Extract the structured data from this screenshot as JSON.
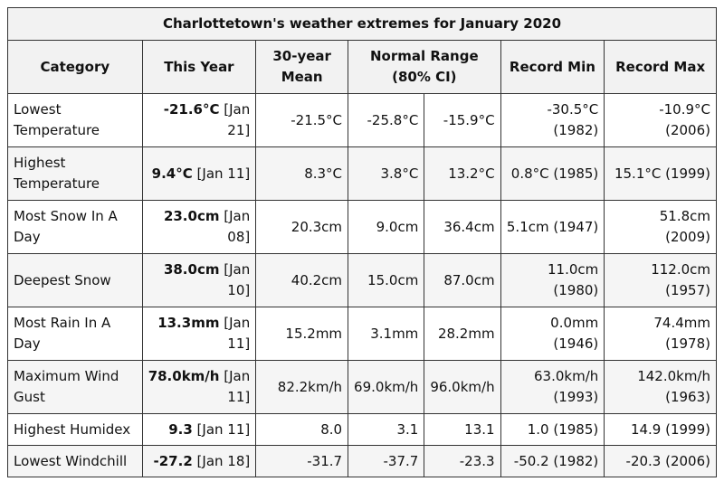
{
  "table": {
    "title": "Charlottetown's weather extremes for January 2020",
    "headers": {
      "category": "Category",
      "this_year": "This Year",
      "mean_line1": "30-year",
      "mean_line2": "Mean",
      "range_line1": "Normal Range",
      "range_line2": "(80% CI)",
      "record_min": "Record Min",
      "record_max": "Record Max"
    },
    "rows": [
      {
        "category": "Lowest Temperature",
        "value": "-21.6°C",
        "date": "[Jan 21]",
        "mean": "-21.5°C",
        "range_low": "-25.8°C",
        "range_high": "-15.9°C",
        "record_min": "-30.5°C (1982)",
        "record_max": "-10.9°C (2006)"
      },
      {
        "category": "Highest Temperature",
        "value": "9.4°C",
        "date": "[Jan 11]",
        "mean": "8.3°C",
        "range_low": "3.8°C",
        "range_high": "13.2°C",
        "record_min": "0.8°C (1985)",
        "record_max": "15.1°C (1999)"
      },
      {
        "category": "Most Snow In A Day",
        "value": "23.0cm",
        "date": "[Jan 08]",
        "mean": "20.3cm",
        "range_low": "9.0cm",
        "range_high": "36.4cm",
        "record_min": "5.1cm (1947)",
        "record_max": "51.8cm (2009)"
      },
      {
        "category": "Deepest Snow",
        "value": "38.0cm",
        "date": "[Jan 10]",
        "mean": "40.2cm",
        "range_low": "15.0cm",
        "range_high": "87.0cm",
        "record_min": "11.0cm (1980)",
        "record_max": "112.0cm (1957)"
      },
      {
        "category": "Most Rain In A Day",
        "value": "13.3mm",
        "date": "[Jan 11]",
        "mean": "15.2mm",
        "range_low": "3.1mm",
        "range_high": "28.2mm",
        "record_min": "0.0mm (1946)",
        "record_max": "74.4mm (1978)"
      },
      {
        "category": "Maximum Wind Gust",
        "value": "78.0km/h",
        "date": "[Jan 11]",
        "mean": "82.2km/h",
        "range_low": "69.0km/h",
        "range_high": "96.0km/h",
        "record_min": "63.0km/h (1993)",
        "record_max": "142.0km/h (1963)"
      },
      {
        "category": "Highest Humidex",
        "value": "9.3",
        "date": "[Jan 11]",
        "mean": "8.0",
        "range_low": "3.1",
        "range_high": "13.1",
        "record_min": "1.0 (1985)",
        "record_max": "14.9 (1999)"
      },
      {
        "category": "Lowest Windchill",
        "value": "-27.2",
        "date": "[Jan 18]",
        "mean": "-31.7",
        "range_low": "-37.7",
        "range_high": "-23.3",
        "record_min": "-50.2 (1982)",
        "record_max": "-20.3 (2006)"
      }
    ]
  }
}
